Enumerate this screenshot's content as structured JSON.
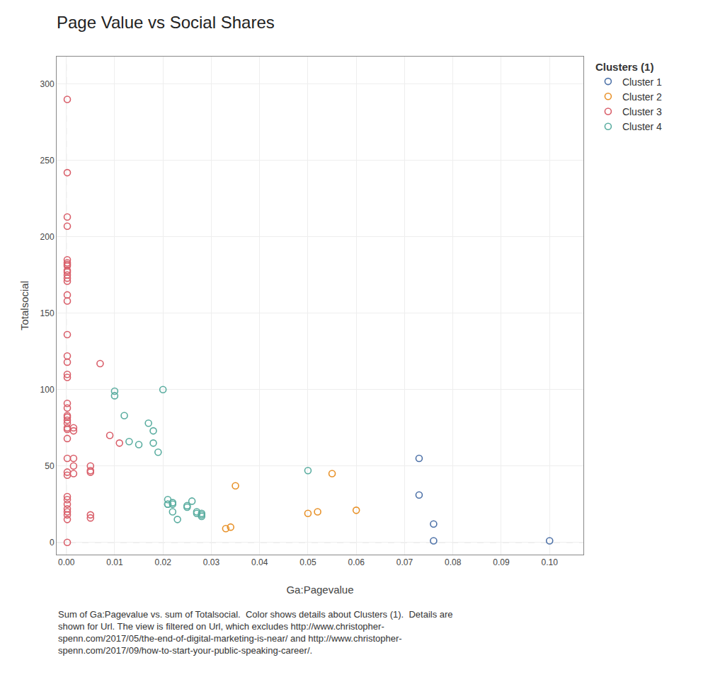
{
  "chart_data": {
    "type": "scatter",
    "title": "Page Value vs Social Shares",
    "x_label": "Ga:Pagevalue",
    "y_label": "Totalsocial",
    "xlim": [
      -0.002,
      0.107
    ],
    "ylim": [
      -8,
      318
    ],
    "xticks": [
      {
        "value": 0.0,
        "label": "0.00"
      },
      0.01,
      0.02,
      0.03,
      0.04,
      0.05,
      0.06,
      0.07,
      0.08,
      0.09,
      {
        "value": 0.1,
        "label": "0.10"
      }
    ],
    "yticks": [
      0,
      50,
      100,
      150,
      200,
      250,
      300
    ],
    "grid": true,
    "legend": "upper right",
    "legend_title": "Clusters (1)",
    "marker": "circle-open",
    "vline_x": 0.0,
    "hline_y": 0.0,
    "series": [
      {
        "name": "Cluster 1",
        "color": "#4e72a8",
        "x": [
          0.073,
          0.073,
          0.076,
          0.076,
          0.1
        ],
        "values": [
          31,
          55,
          12,
          1,
          1
        ]
      },
      {
        "name": "Cluster 2",
        "color": "#e8922a",
        "x": [
          0.033,
          0.034,
          0.035,
          0.05,
          0.052,
          0.055,
          0.06
        ],
        "values": [
          9,
          10,
          37,
          19,
          20,
          45,
          21
        ]
      },
      {
        "name": "Cluster 3",
        "color": "#d95f6a",
        "x": [
          0.0002,
          0.0002,
          0.0002,
          0.0002,
          0.0002,
          0.0002,
          0.0002,
          0.0002,
          0.0002,
          0.0002,
          0.0002,
          0.0002,
          0.0002,
          0.0002,
          0.0002,
          0.0002,
          0.0002,
          0.0002,
          0.0002,
          0.0002,
          0.0002,
          0.0002,
          0.0002,
          0.0002,
          0.0002,
          0.0002,
          0.0002,
          0.0002,
          0.0002,
          0.0002,
          0.0002,
          0.0002,
          0.0002,
          0.0002,
          0.0002,
          0.0002,
          0.0002,
          0.0002,
          0.0002,
          0.0002,
          0.0015,
          0.0015,
          0.0015,
          0.0015,
          0.0015,
          0.005,
          0.005,
          0.005,
          0.005,
          0.005,
          0.007,
          0.009,
          0.011
        ],
        "values": [
          290,
          242,
          213,
          207,
          185,
          183,
          182,
          181,
          178,
          177,
          175,
          173,
          171,
          162,
          158,
          136,
          122,
          118,
          110,
          108,
          91,
          88,
          83,
          82,
          80,
          78,
          75,
          74,
          68,
          55,
          46,
          44,
          30,
          28,
          25,
          22,
          20,
          18,
          15,
          0,
          75,
          73,
          55,
          50,
          45,
          50,
          47,
          46,
          18,
          16,
          117,
          70,
          65
        ]
      },
      {
        "name": "Cluster 4",
        "color": "#5aada0",
        "x": [
          0.01,
          0.01,
          0.012,
          0.013,
          0.015,
          0.017,
          0.018,
          0.018,
          0.019,
          0.02,
          0.021,
          0.021,
          0.021,
          0.022,
          0.022,
          0.022,
          0.023,
          0.025,
          0.025,
          0.026,
          0.027,
          0.027,
          0.028,
          0.028,
          0.028,
          0.05
        ],
        "values": [
          99,
          96,
          83,
          66,
          64,
          78,
          73,
          65,
          59,
          100,
          28,
          25,
          25,
          26,
          25,
          20,
          15,
          24,
          23,
          27,
          20,
          19,
          18,
          17,
          19,
          47
        ]
      }
    ],
    "caption": "Sum of Ga:Pagevalue vs. sum of Totalsocial.  Color shows details about Clusters (1).  Details are\nshown for Url. The view is filtered on Url, which excludes http://www.christopher-\nspenn.com/2017/05/the-end-of-digital-marketing-is-near/ and http://www.christopher-\nspenn.com/2017/09/how-to-start-your-public-speaking-career/."
  }
}
